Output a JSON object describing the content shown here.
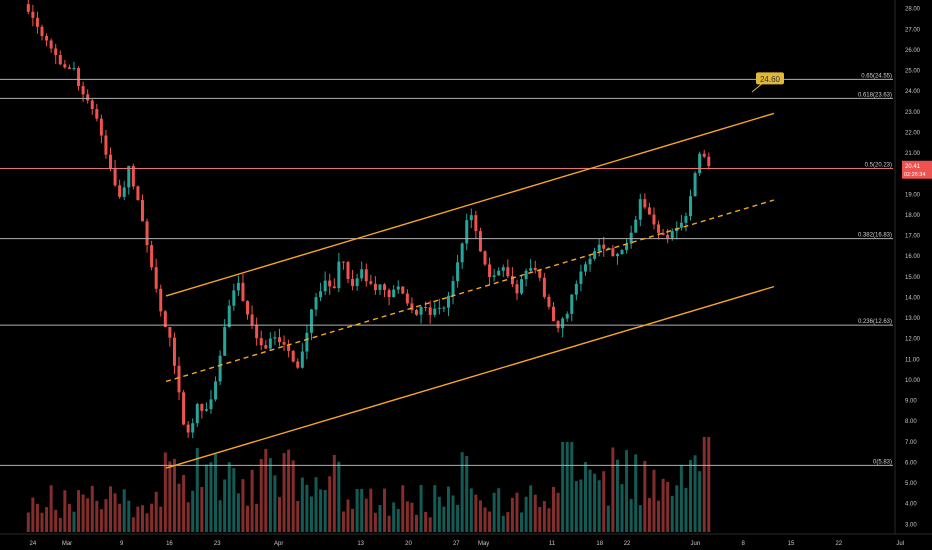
{
  "chart_data": {
    "type": "candlestick",
    "x_axis": {
      "labels": [
        "24",
        "Mar",
        "9",
        "16",
        "23",
        "Apr",
        "13",
        "20",
        "27",
        "May",
        "11",
        "18",
        "22",
        "Jun",
        "8",
        "15",
        "22",
        "Jul"
      ],
      "label_days": [
        -5,
        0,
        8,
        15,
        22,
        31,
        43,
        50,
        57,
        61,
        71,
        78,
        82,
        92,
        99,
        106,
        113,
        122
      ]
    },
    "y_axis": {
      "ticks": [
        "3.00",
        "4.00",
        "5.00",
        "6.00",
        "7.00",
        "8.00",
        "9.00",
        "10.00",
        "11.00",
        "12.00",
        "13.00",
        "14.00",
        "15.00",
        "16.00",
        "17.00",
        "18.00",
        "19.00",
        "20.00",
        "21.00",
        "22.00",
        "23.00",
        "24.00",
        "25.00",
        "26.00",
        "27.00",
        "28.00"
      ],
      "range": [
        2.6,
        28.4
      ],
      "scale": "linear"
    },
    "fib_levels": [
      {
        "label": "0.65(24.55)",
        "value": 24.55
      },
      {
        "label": "0.618(23.63)",
        "value": 23.63
      },
      {
        "label": "0.5(20.23)",
        "value": 20.23
      },
      {
        "label": "0.382(16.83)",
        "value": 16.83
      },
      {
        "label": "0.236(12.63)",
        "value": 12.63
      },
      {
        "label": "0(5.83)",
        "value": 5.83
      }
    ],
    "price_tag": {
      "value": "20.41",
      "countdown": "02:26:34"
    },
    "target_callout": {
      "text": "24.60",
      "value": 24.6
    },
    "channel": {
      "upper": {
        "from": [
          14.5,
          14.05
        ],
        "to": [
          103.5,
          22.9
        ]
      },
      "mid_dashed": {
        "from": [
          14.5,
          9.9
        ],
        "to": [
          103.5,
          18.7
        ]
      },
      "lower": {
        "from": [
          14.5,
          5.7
        ],
        "to": [
          103.5,
          14.5
        ]
      }
    },
    "price_path": [
      [
        -6,
        28.2
      ],
      [
        -4,
        27.0
      ],
      [
        -2,
        26.0
      ],
      [
        0,
        24.8
      ],
      [
        1,
        25.2
      ],
      [
        2,
        24.0
      ],
      [
        3,
        23.4
      ],
      [
        4,
        23.0
      ],
      [
        5,
        22.0
      ],
      [
        6,
        20.6
      ],
      [
        7,
        19.6
      ],
      [
        8,
        18.4
      ],
      [
        9,
        20.5
      ],
      [
        10,
        19.0
      ],
      [
        11,
        17.8
      ],
      [
        12,
        16.0
      ],
      [
        13,
        14.5
      ],
      [
        14,
        12.8
      ],
      [
        15,
        12.0
      ],
      [
        16,
        10.0
      ],
      [
        17,
        8.0
      ],
      [
        18,
        7.0
      ],
      [
        19,
        9.0
      ],
      [
        20,
        8.3
      ],
      [
        21,
        9.0
      ],
      [
        22,
        10.0
      ],
      [
        23,
        12.5
      ],
      [
        24,
        14.0
      ],
      [
        25,
        14.9
      ],
      [
        26,
        13.5
      ],
      [
        27,
        12.5
      ],
      [
        28,
        12.0
      ],
      [
        29,
        11.5
      ],
      [
        30,
        12.2
      ],
      [
        31,
        11.8
      ],
      [
        32,
        11.5
      ],
      [
        33,
        11.0
      ],
      [
        34,
        10.6
      ],
      [
        35,
        12.2
      ],
      [
        36,
        13.5
      ],
      [
        37,
        14.2
      ],
      [
        38,
        14.8
      ],
      [
        39,
        14.2
      ],
      [
        40,
        16.2
      ],
      [
        41,
        15.0
      ],
      [
        42,
        14.5
      ],
      [
        43,
        15.3
      ],
      [
        44,
        14.7
      ],
      [
        45,
        14.3
      ],
      [
        46,
        14.6
      ],
      [
        47,
        14.0
      ],
      [
        48,
        14.5
      ],
      [
        49,
        14.2
      ],
      [
        50,
        13.6
      ],
      [
        51,
        13.2
      ],
      [
        52,
        13.5
      ],
      [
        53,
        13.2
      ],
      [
        54,
        13.3
      ],
      [
        55,
        13.5
      ],
      [
        56,
        14.0
      ],
      [
        57,
        15.5
      ],
      [
        58,
        16.7
      ],
      [
        59,
        18.4
      ],
      [
        60,
        17.0
      ],
      [
        61,
        15.6
      ],
      [
        62,
        15.0
      ],
      [
        63,
        15.2
      ],
      [
        64,
        15.5
      ],
      [
        65,
        14.5
      ],
      [
        66,
        14.3
      ],
      [
        67,
        15.1
      ],
      [
        68,
        15.5
      ],
      [
        69,
        15.1
      ],
      [
        70,
        14.0
      ],
      [
        71,
        13.1
      ],
      [
        72,
        12.6
      ],
      [
        73,
        13.0
      ],
      [
        74,
        14.3
      ],
      [
        75,
        15.0
      ],
      [
        76,
        15.5
      ],
      [
        77,
        16.2
      ],
      [
        78,
        16.6
      ],
      [
        79,
        16.4
      ],
      [
        80,
        16.0
      ],
      [
        81,
        16.1
      ],
      [
        82,
        16.8
      ],
      [
        83,
        17.5
      ],
      [
        84,
        19.0
      ],
      [
        85,
        18.1
      ],
      [
        86,
        17.4
      ],
      [
        87,
        17.1
      ],
      [
        88,
        17.0
      ],
      [
        89,
        17.4
      ],
      [
        90,
        17.6
      ],
      [
        91,
        18.2
      ],
      [
        92,
        20.2
      ],
      [
        93,
        21.2
      ],
      [
        94,
        20.41
      ]
    ],
    "volume_bars": 150
  }
}
